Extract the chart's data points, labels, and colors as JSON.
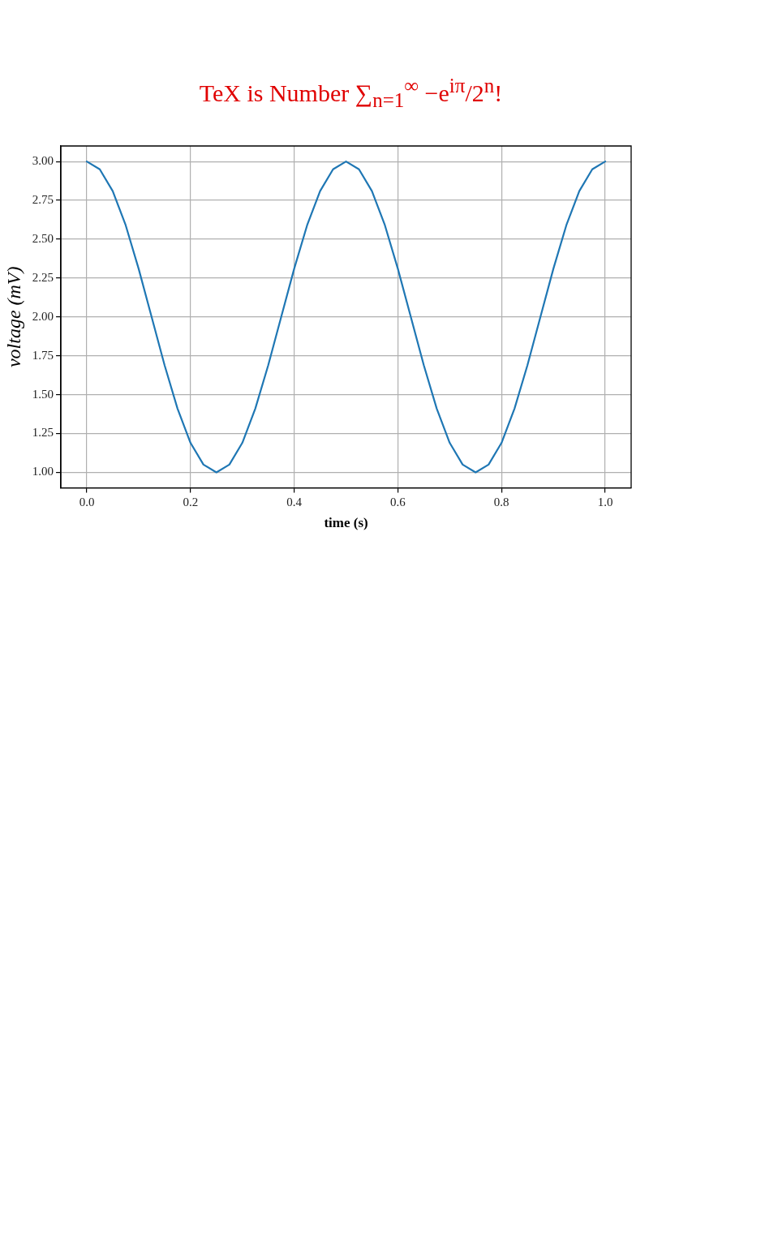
{
  "chart_data": {
    "type": "line",
    "title": "TeX is Number ∑$_{n=1}$$^{∞}$ −e$^{iπ}$/2$^{n}$!",
    "xlabel": "time (s)",
    "ylabel": "voltage (mV)",
    "x": [
      0,
      0.025,
      0.05,
      0.075,
      0.1,
      0.125,
      0.15,
      0.175,
      0.2,
      0.225,
      0.25,
      0.275,
      0.3,
      0.325,
      0.35,
      0.375,
      0.4,
      0.425,
      0.45,
      0.475,
      0.5,
      0.525,
      0.55,
      0.575,
      0.6,
      0.625,
      0.65,
      0.675,
      0.7,
      0.725,
      0.75,
      0.775,
      0.8,
      0.825,
      0.85,
      0.875,
      0.9,
      0.925,
      0.95,
      0.975,
      1
    ],
    "series": [
      {
        "color": "#1f77b4",
        "values": [
          3,
          2.95,
          2.81,
          2.59,
          2.31,
          2,
          1.69,
          1.41,
          1.19,
          1.05,
          1,
          1.05,
          1.19,
          1.41,
          1.69,
          2,
          2.31,
          2.59,
          2.81,
          2.95,
          3,
          2.95,
          2.81,
          2.59,
          2.31,
          2,
          1.69,
          1.41,
          1.19,
          1.05,
          1,
          1.05,
          1.19,
          1.41,
          1.69,
          2,
          2.31,
          2.59,
          2.81,
          2.95,
          3
        ]
      }
    ],
    "xlim": [
      -0.05,
      1.05
    ],
    "ylim": [
      0.9,
      3.1
    ],
    "xticks": [
      {
        "value": 0,
        "label": "0.0"
      },
      {
        "value": 0.2,
        "label": "0.2"
      },
      {
        "value": 0.4,
        "label": "0.4"
      },
      {
        "value": 0.6,
        "label": "0.6"
      },
      {
        "value": 0.8,
        "label": "0.8"
      },
      {
        "value": 1,
        "label": "1.0"
      }
    ],
    "yticks": [
      {
        "value": 1,
        "label": "1.00"
      },
      {
        "value": 1.25,
        "label": "1.25"
      },
      {
        "value": 1.5,
        "label": "1.50"
      },
      {
        "value": 1.75,
        "label": "1.75"
      },
      {
        "value": 2,
        "label": "2.00"
      },
      {
        "value": 2.25,
        "label": "2.25"
      },
      {
        "value": 2.5,
        "label": "2.50"
      },
      {
        "value": 2.75,
        "label": "2.75"
      },
      {
        "value": 3,
        "label": "3.00"
      }
    ],
    "grid": true,
    "legend": false,
    "marker": "none",
    "line_style": "solid"
  }
}
